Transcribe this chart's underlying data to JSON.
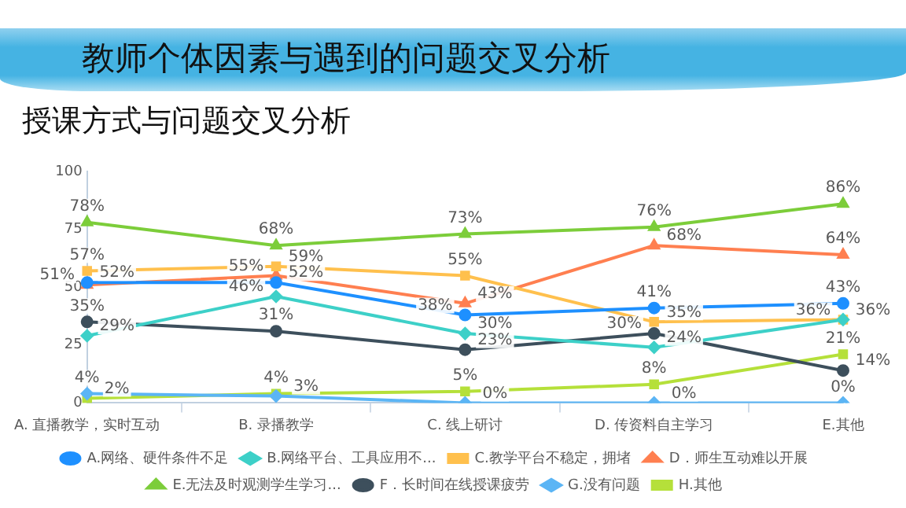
{
  "chart_data": {
    "type": "line",
    "title": "教师个体因素与遇到的问题交叉分析",
    "subtitle": "授课方式与问题交叉分析",
    "categories": [
      "A. 直播教学，实时互动",
      "B. 录播教学",
      "C. 线上研讨",
      "D. 传资料自主学习",
      "E.其他"
    ],
    "ylim": [
      0,
      100
    ],
    "yticks": [
      0,
      25,
      50,
      75,
      100
    ],
    "grid": false,
    "legend": "bottom",
    "series": [
      {
        "name": "A.网络、硬件条件不足",
        "color": "#1e90ff",
        "marker": "circle",
        "values": [
          52,
          52,
          38,
          41,
          43
        ],
        "value_labels": [
          "52%",
          "52%",
          "38%",
          "41%",
          "43%"
        ]
      },
      {
        "name": "B.网络平台、工具应用不...",
        "color": "#3dd0c8",
        "marker": "diamond",
        "values": [
          29,
          46,
          30,
          24,
          36
        ],
        "value_labels": [
          "29%",
          "46%",
          "30%",
          "24%",
          "36%"
        ]
      },
      {
        "name": "C.教学平台不稳定，拥堵",
        "color": "#ffc04d",
        "marker": "square",
        "values": [
          57,
          59,
          55,
          35,
          36
        ],
        "value_labels": [
          "57%",
          "59%",
          "55%",
          "35%",
          "36%"
        ]
      },
      {
        "name": "D．师生互动难以开展",
        "color": "#ff7f50",
        "marker": "triangle",
        "values": [
          51,
          55,
          43,
          68,
          64
        ],
        "value_labels": [
          "51%",
          "55%",
          "43%",
          "68%",
          "64%"
        ]
      },
      {
        "name": "E.无法及时观测学生学习...",
        "color": "#7ccd3a",
        "marker": "triangle",
        "values": [
          78,
          68,
          73,
          76,
          86
        ],
        "value_labels": [
          "78%",
          "68%",
          "73%",
          "76%",
          "86%"
        ]
      },
      {
        "name": "F．长时间在线授课疲劳",
        "color": "#3d4f5c",
        "marker": "circle",
        "values": [
          35,
          31,
          23,
          30,
          14
        ],
        "value_labels": [
          "35%",
          "31%",
          "23%",
          "30%",
          "14%"
        ]
      },
      {
        "name": "G.没有问题",
        "color": "#5bb5f5",
        "marker": "diamond",
        "values": [
          4,
          3,
          0,
          0,
          0
        ],
        "value_labels": [
          "4%",
          "3%",
          "0%",
          "0%",
          "0%"
        ]
      },
      {
        "name": "H.其他",
        "color": "#b5e03a",
        "marker": "square",
        "values": [
          2,
          4,
          5,
          8,
          21
        ],
        "value_labels": [
          "2%",
          "4%",
          "5%",
          "8%",
          "21%"
        ]
      }
    ]
  }
}
